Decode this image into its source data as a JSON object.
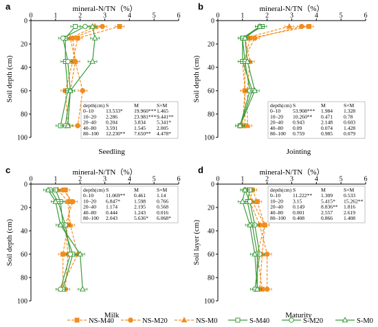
{
  "chart_data": [
    {
      "type": "line",
      "panel_label": "a",
      "stage": "Seedling",
      "xlabel": "mineral-N/TN（%）",
      "ylabel": "Soil depth (cm)",
      "xlim": [
        0,
        6
      ],
      "ylim": [
        0,
        100
      ],
      "xticks": [
        "0",
        "1",
        "2",
        "3",
        "4",
        "5",
        "6"
      ],
      "yticks": [
        "0",
        "20",
        "40",
        "60",
        "80",
        "100"
      ],
      "y": [
        5,
        15,
        35,
        60,
        90
      ],
      "series": [
        {
          "name": "NS-M40",
          "values": [
            3.6,
            1.9,
            1.7,
            1.4,
            1.5
          ]
        },
        {
          "name": "NS-M20",
          "values": [
            2.9,
            1.7,
            1.8,
            2.1,
            1.9
          ]
        },
        {
          "name": "NS-M0",
          "values": [
            2.6,
            1.6,
            1.8,
            1.6,
            1.5
          ]
        },
        {
          "name": "S-M40",
          "values": [
            1.8,
            1.4,
            1.4,
            1.5,
            1.2
          ]
        },
        {
          "name": "S-M20",
          "values": [
            2.2,
            1.3,
            1.5,
            1.6,
            1.4
          ]
        },
        {
          "name": "S-M0",
          "values": [
            2.5,
            2.6,
            2.5,
            1.6,
            1.5
          ]
        }
      ],
      "stats": {
        "header": [
          "depth(cm)",
          "S",
          "M",
          "S×M"
        ],
        "rows": [
          [
            "0–10",
            "13.533*",
            "19.960***",
            "1.465"
          ],
          [
            "10–20",
            "2.286",
            "23.981***",
            "9.441**"
          ],
          [
            "20–40",
            "0.204",
            "3.834",
            "5.341*"
          ],
          [
            "40–80",
            "3.591",
            "1.545",
            "2.005"
          ],
          [
            "80–100",
            "12.230**",
            "7.650**",
            "4.478*"
          ]
        ]
      }
    },
    {
      "type": "line",
      "panel_label": "b",
      "stage": "Jointing",
      "xlabel": "mineral-N/TN（%）",
      "ylabel": "Soil depth (cm)",
      "xlim": [
        0,
        6
      ],
      "ylim": [
        0,
        100
      ],
      "xticks": [
        "0",
        "1",
        "2",
        "3",
        "4",
        "5",
        "6"
      ],
      "yticks": [
        "0",
        "20",
        "40",
        "60",
        "80",
        "100"
      ],
      "y": [
        5,
        15,
        35,
        60,
        90
      ],
      "series": [
        {
          "name": "NS-M40",
          "values": [
            3.7,
            1.3,
            1.1,
            1.1,
            1.0
          ]
        },
        {
          "name": "NS-M20",
          "values": [
            3.4,
            1.5,
            1.0,
            1.1,
            1.1
          ]
        },
        {
          "name": "NS-M0",
          "values": [
            2.9,
            1.1,
            1.3,
            1.2,
            1.2
          ]
        },
        {
          "name": "S-M40",
          "values": [
            1.8,
            1.0,
            1.0,
            1.4,
            0.9
          ]
        },
        {
          "name": "S-M20",
          "values": [
            1.7,
            1.0,
            1.1,
            1.3,
            0.9
          ]
        },
        {
          "name": "S-M0",
          "values": [
            1.7,
            1.1,
            1.2,
            1.5,
            0.9
          ]
        }
      ],
      "stats": {
        "header": [
          "depth(cm)",
          "S",
          "M",
          "S×M"
        ],
        "rows": [
          [
            "0–10",
            "53.908***",
            "1.984",
            "1.328"
          ],
          [
            "10–20",
            "10.260**",
            "0.471",
            "0.78"
          ],
          [
            "20–40",
            "0.943",
            "2.148",
            "0.603"
          ],
          [
            "40–80",
            "0.09",
            "0.074",
            "1.428"
          ],
          [
            "80–100",
            "0.759",
            "0.985",
            "0.079"
          ]
        ]
      }
    },
    {
      "type": "line",
      "panel_label": "c",
      "stage": "Milk",
      "xlabel": "mineral-N/TN（%）",
      "ylabel": "Soil depth (cm)",
      "xlim": [
        0,
        6
      ],
      "ylim": [
        0,
        100
      ],
      "xticks": [
        "0",
        "1",
        "2",
        "3",
        "4",
        "5",
        "6"
      ],
      "yticks": [
        "0",
        "20",
        "40",
        "60",
        "80",
        "100"
      ],
      "y": [
        5,
        15,
        35,
        60,
        90
      ],
      "series": [
        {
          "name": "NS-M40",
          "values": [
            1.4,
            1.6,
            1.5,
            1.3,
            1.3
          ]
        },
        {
          "name": "NS-M20",
          "values": [
            1.3,
            1.7,
            1.4,
            1.5,
            1.4
          ]
        },
        {
          "name": "NS-M0",
          "values": [
            1.1,
            1.5,
            1.6,
            1.9,
            1.2
          ]
        },
        {
          "name": "S-M40",
          "values": [
            1.0,
            1.2,
            1.3,
            1.7,
            1.3
          ]
        },
        {
          "name": "S-M20",
          "values": [
            0.8,
            1.1,
            1.4,
            1.6,
            1.2
          ]
        },
        {
          "name": "S-M0",
          "values": [
            0.7,
            1.0,
            1.2,
            2.0,
            2.1
          ]
        }
      ],
      "stats": {
        "header": [
          "depth(cm)",
          "S",
          "M",
          "S×M"
        ],
        "rows": [
          [
            "0–10",
            "11.069**",
            "0.461",
            "1.14"
          ],
          [
            "10–20",
            "6.847*",
            "1.598",
            "0.766"
          ],
          [
            "20–40",
            "1.174",
            "2.195",
            "0.568"
          ],
          [
            "40–80",
            "0.444",
            "1.243",
            "0.016"
          ],
          [
            "80–100",
            "2.043",
            "5.636*",
            "6.068*"
          ]
        ]
      }
    },
    {
      "type": "line",
      "panel_label": "d",
      "stage": "Maturity",
      "xlabel": "mineral-N/TN（%）",
      "ylabel": "Soil layer (cm)",
      "xlim": [
        0,
        6
      ],
      "ylim": [
        0,
        100
      ],
      "xticks": [
        "0",
        "1",
        "2",
        "3",
        "4",
        "5",
        "6"
      ],
      "yticks": [
        "0",
        "20",
        "40",
        "60",
        "80",
        "100"
      ],
      "y": [
        5,
        15,
        35,
        60,
        90
      ],
      "series": [
        {
          "name": "NS-M40",
          "values": [
            1.4,
            1.6,
            1.9,
            1.6,
            1.8
          ]
        },
        {
          "name": "NS-M20",
          "values": [
            1.4,
            1.3,
            1.7,
            2.0,
            2.0
          ]
        },
        {
          "name": "NS-M0",
          "values": [
            1.2,
            1.4,
            1.9,
            1.8,
            1.7
          ]
        },
        {
          "name": "S-M40",
          "values": [
            1.3,
            1.2,
            1.4,
            1.6,
            1.6
          ]
        },
        {
          "name": "S-M20",
          "values": [
            1.1,
            1.3,
            1.5,
            1.7,
            1.5
          ]
        },
        {
          "name": "S-M0",
          "values": [
            1.1,
            1.0,
            1.3,
            1.5,
            1.6
          ]
        }
      ],
      "stats": {
        "header": [
          "depth(cm)",
          "S",
          "M",
          "S×M"
        ],
        "rows": [
          [
            "0–10",
            "11.222**",
            "1.309",
            "0.533"
          ],
          [
            "10–20",
            "3.15",
            "5.415*",
            "15.262**"
          ],
          [
            "20–40",
            "0.149",
            "8.836**",
            "1.816"
          ],
          [
            "40–80",
            "0.001",
            "2.557",
            "2.619"
          ],
          [
            "80–100",
            "0.408",
            "0.866",
            "1.408"
          ]
        ]
      }
    }
  ],
  "legend": {
    "position": "bottom",
    "entries": [
      "NS-M40",
      "NS-M20",
      "NS-M0",
      "S-M40",
      "S-M20",
      "S-M0"
    ]
  },
  "colors": {
    "ns": "#f28c1e",
    "s": "#3a9a3a",
    "axis": "#000000",
    "stats_border": "#999999"
  },
  "markers": {
    "NS-M40": "square",
    "NS-M20": "circle",
    "NS-M0": "triangle",
    "S-M40": "square",
    "S-M20": "circle",
    "S-M0": "triangle"
  }
}
